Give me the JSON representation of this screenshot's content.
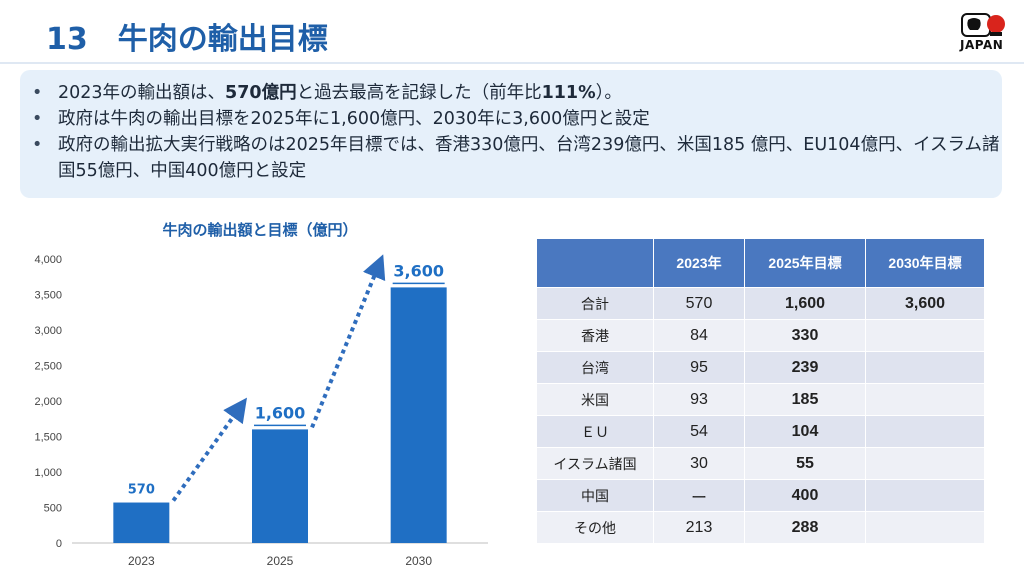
{
  "header": {
    "number": "13",
    "title": "牛肉の輸出目標",
    "logo_text": "JAPAN"
  },
  "bullets": [
    {
      "before": "2023年の輸出額は、",
      "bold1": "570億円",
      "middle": "と過去最高を記録した（前年比",
      "bold2": "111%",
      "after": "）。"
    },
    {
      "before": "政府は牛肉の輸出目標を2025年に1,600億円、2030年に3,600億円と設定",
      "bold1": "",
      "middle": "",
      "bold2": "",
      "after": ""
    },
    {
      "before": "政府の輸出拡大実行戦略のは2025年目標では、香港330億円、台湾239億円、米国185 億円、EU104億円、イスラム諸国55億円、中国400億円と設定",
      "bold1": "",
      "middle": "",
      "bold2": "",
      "after": ""
    }
  ],
  "chart_data": {
    "type": "bar",
    "title": "牛肉の輸出額と目標（億円）",
    "categories": [
      "2023",
      "2025",
      "2030"
    ],
    "values": [
      570,
      1600,
      3600
    ],
    "data_labels": [
      "570",
      "1,600",
      "3,600"
    ],
    "yticks": [
      "0",
      "500",
      "1,000",
      "1,500",
      "2,000",
      "2,500",
      "3,000",
      "3,500",
      "4,000"
    ],
    "ylim": [
      0,
      4000
    ],
    "bar_color": "#1f6fc4",
    "arrow_color": "#2f6dbd",
    "grid": false
  },
  "table": {
    "headers": [
      "",
      "2023年",
      "2025年目標",
      "2030年目標"
    ],
    "rows": [
      {
        "name": "合計",
        "y2023": "570",
        "t2025": "1,600",
        "t2030": "3,600"
      },
      {
        "name": "香港",
        "y2023": "84",
        "t2025": "330",
        "t2030": ""
      },
      {
        "name": "台湾",
        "y2023": "95",
        "t2025": "239",
        "t2030": ""
      },
      {
        "name": "米国",
        "y2023": "93",
        "t2025": "185",
        "t2030": ""
      },
      {
        "name": "ＥＵ",
        "y2023": "54",
        "t2025": "104",
        "t2030": ""
      },
      {
        "name": "イスラム諸国",
        "y2023": "30",
        "t2025": "55",
        "t2030": ""
      },
      {
        "name": "中国",
        "y2023": "ー",
        "t2025": "400",
        "t2030": ""
      },
      {
        "name": "その他",
        "y2023": "213",
        "t2025": "288",
        "t2030": ""
      }
    ]
  },
  "colors": {
    "title": "#1f5fa8",
    "panel": "#e6f0fa",
    "table_header": "#4a78c0"
  }
}
